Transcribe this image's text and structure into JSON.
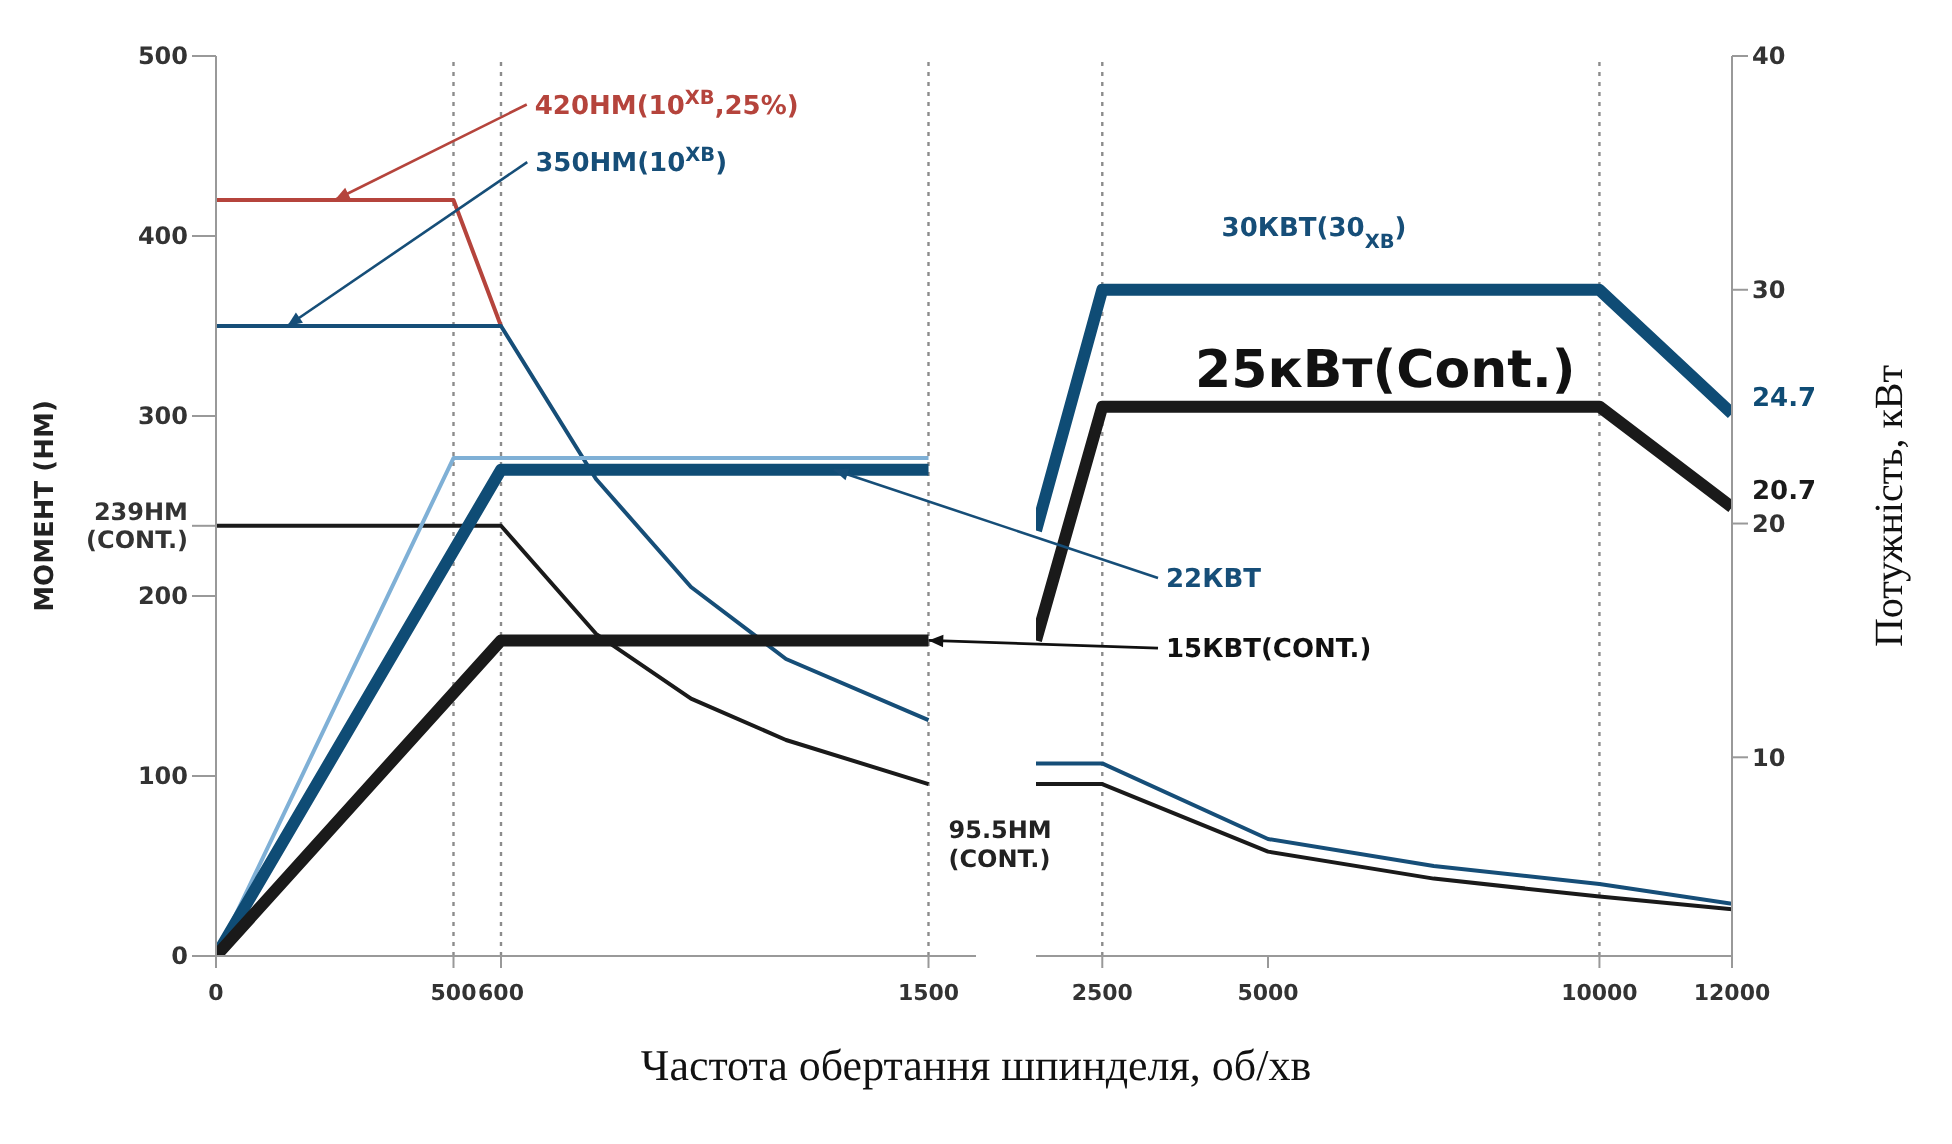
{
  "chart_data": [
    {
      "type": "line",
      "ylabel": "МОМЕНТ (НМ)",
      "xlim": [
        0,
        1600
      ],
      "xticks": [
        0,
        500,
        600,
        1500
      ],
      "ylim": [
        0,
        500
      ],
      "yticks": [
        0,
        100,
        200,
        {
          "value": 239,
          "label": "239НМ\n(CONT.)"
        },
        300,
        400,
        500
      ],
      "y2lim": [
        1.5,
        40
      ],
      "grid": false,
      "legend": false,
      "marker": "none",
      "ref_lines": [
        {
          "axis": "x",
          "value": 500,
          "line_style": "dotted",
          "color": "#8c8c8c"
        },
        {
          "axis": "x",
          "value": 600,
          "line_style": "dotted",
          "color": "#8c8c8c"
        },
        {
          "axis": "x",
          "value": 1500,
          "line_style": "dotted",
          "color": "#8c8c8c"
        }
      ],
      "annotations": [
        {
          "text": "420НМ(10$^{ХВ}$,25%)",
          "x": 250,
          "y": 420
        },
        {
          "text": "350НМ(10$^{ХВ}$)",
          "x": 150,
          "y": 350
        },
        "22КВТ",
        {
          "text": "15КВТ(CONT.)",
          "x": 1500
        },
        {
          "text": "95.5НМ\n(CONT.)",
          "x": 1500,
          "y": 95.5
        }
      ],
      "series": [
        {
          "axis": "y",
          "color": "#b5443c",
          "x": [
            0,
            500,
            600
          ],
          "values": [
            420,
            420,
            350
          ]
        },
        {
          "axis": "y",
          "color": "#164e78",
          "x": [
            0,
            600,
            800,
            1000,
            1200,
            1500
          ],
          "values": [
            350,
            350,
            265,
            205,
            165,
            131
          ]
        },
        {
          "axis": "y",
          "color": "#1a1a1a",
          "x": [
            0,
            600,
            800,
            1000,
            1200,
            1500
          ],
          "values": [
            239,
            239,
            179,
            143,
            120,
            95.5
          ]
        },
        {
          "axis": "y2",
          "color": "#7fb0d6",
          "x": [
            0,
            500,
            1500
          ],
          "values": [
            1.5,
            22.8,
            22.8
          ]
        },
        {
          "axis": "y2",
          "color": "#0f4c75",
          "x": [
            0,
            600,
            1500
          ],
          "values": [
            1.5,
            22.3,
            22.3
          ]
        },
        {
          "axis": "y2",
          "color": "#1a1a1a",
          "x": [
            0,
            600,
            1500
          ],
          "values": [
            1.5,
            15,
            15
          ]
        }
      ]
    },
    {
      "type": "line",
      "xlabel": "Частота обертання шпинделя, об/хв",
      "y2label": "Потужність, кВт",
      "xlim": [
        1500,
        12000
      ],
      "xticks": [
        2500,
        5000,
        10000,
        12000
      ],
      "ylim": [
        0,
        500
      ],
      "y2lim": [
        1.5,
        40
      ],
      "y2ticks": [
        10,
        20,
        30,
        40
      ],
      "grid": false,
      "legend": false,
      "marker": "none",
      "ref_lines": [
        {
          "axis": "x",
          "value": 2500,
          "line_style": "dotted",
          "color": "#8c8c8c"
        },
        {
          "axis": "x",
          "value": 10000,
          "line_style": "dotted",
          "color": "#8c8c8c"
        }
      ],
      "annotations": [
        "30КВТ(30$_{ХВ}$)",
        "25кВт(Cont.)"
      ],
      "series": [
        {
          "axis": "y",
          "color": "#164e78",
          "x": [
            1500,
            2500,
            5000,
            7500,
            10000,
            12000
          ],
          "values": [
            107,
            107,
            65,
            50,
            40,
            29
          ]
        },
        {
          "axis": "y",
          "color": "#1a1a1a",
          "x": [
            1500,
            2500,
            5000,
            7500,
            10000,
            12000
          ],
          "values": [
            95.5,
            95.5,
            58,
            43,
            33,
            26
          ]
        },
        {
          "axis": "y2",
          "color": "#0f4c75",
          "x": [
            1500,
            2500,
            10000,
            12000
          ],
          "values": [
            19.7,
            30,
            30,
            24.7
          ],
          "value_labels": [
            null,
            null,
            null,
            "24.7"
          ]
        },
        {
          "axis": "y2",
          "color": "#1a1a1a",
          "x": [
            1500,
            2500,
            10000,
            12000
          ],
          "values": [
            15,
            25,
            25,
            20.7
          ],
          "value_labels": [
            null,
            null,
            null,
            "20.7"
          ]
        }
      ]
    }
  ]
}
